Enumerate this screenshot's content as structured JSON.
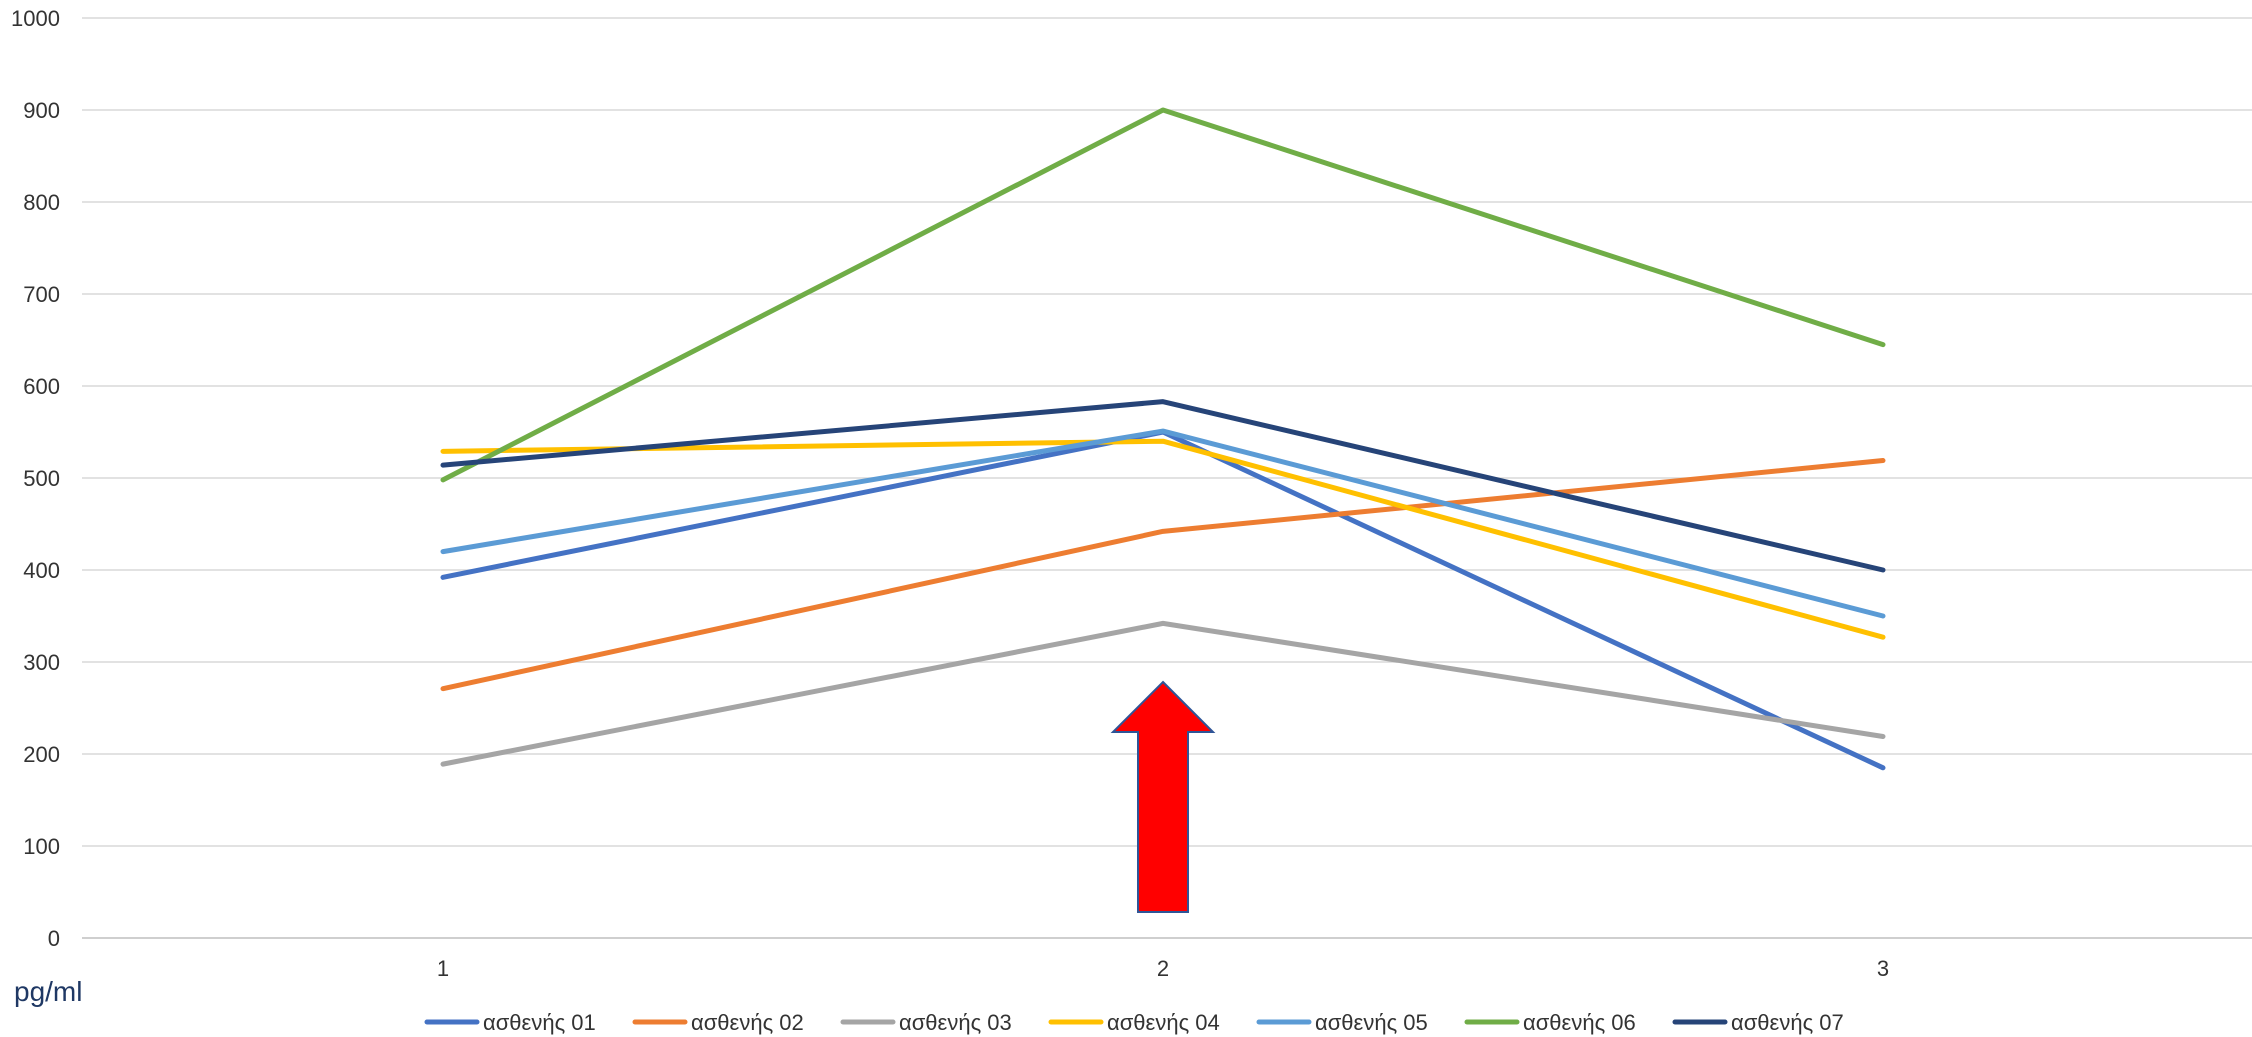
{
  "chart_data": {
    "type": "line",
    "categories": [
      "1",
      "2",
      "3"
    ],
    "ylim": [
      0,
      1000
    ],
    "yticks": [
      0,
      100,
      200,
      300,
      400,
      500,
      600,
      700,
      800,
      900,
      1000
    ],
    "ylabel": "pg/ml",
    "grid": true,
    "legend_position": "bottom",
    "series": [
      {
        "name": "ασθενής 01",
        "color": "#4472c4",
        "values": [
          392,
          550,
          185
        ]
      },
      {
        "name": "ασθενής 02",
        "color": "#ed7d31",
        "values": [
          271,
          442,
          519
        ]
      },
      {
        "name": "ασθενής 03",
        "color": "#a5a5a5",
        "values": [
          189,
          342,
          219
        ]
      },
      {
        "name": "ασθενής 04",
        "color": "#ffc000",
        "values": [
          529,
          540,
          327
        ]
      },
      {
        "name": "ασθενής 05",
        "color": "#5b9bd5",
        "values": [
          420,
          551,
          350
        ]
      },
      {
        "name": "ασθενής 06",
        "color": "#70ad47",
        "values": [
          498,
          900,
          645
        ]
      },
      {
        "name": "ασθενής 07",
        "color": "#264478",
        "values": [
          514,
          583,
          400
        ]
      }
    ],
    "annotation": {
      "shape": "up-arrow",
      "at_category": "2",
      "color": "#ff0000",
      "outline": "#2f5597"
    }
  }
}
